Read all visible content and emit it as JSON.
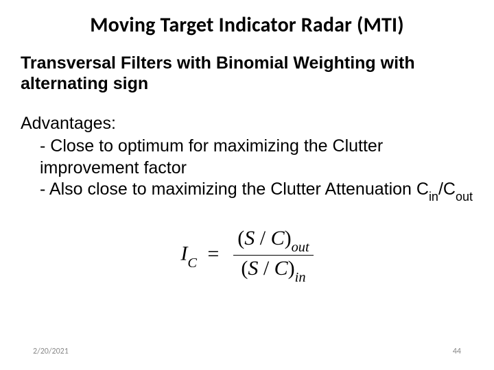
{
  "colors": {
    "background": "#ffffff",
    "text": "#000000",
    "footer_text": "#898989"
  },
  "typography": {
    "title_font": "Calibri",
    "title_size_pt": 30,
    "title_weight": "700",
    "subtitle_size_pt": 25,
    "subtitle_weight": "700",
    "body_font": "Arial",
    "body_size_pt": 25,
    "formula_font": "Times New Roman",
    "formula_size_pt": 30,
    "footer_size_pt": 12
  },
  "title": "Moving Target Indicator Radar (MTI)",
  "subtitle": "Transversal Filters with Binomial Weighting with alternating sign",
  "body": {
    "heading": "Advantages:",
    "bullet1": "- Close to optimum for maximizing the Clutter improvement factor",
    "bullet2_prefix": "- Also close to maximizing the Clutter Attenuation C",
    "bullet2_sub1": "in",
    "bullet2_slash": "/C",
    "bullet2_sub2": "out"
  },
  "formula": {
    "lhs_I": "I",
    "lhs_Csub": "C",
    "eq": "=",
    "num_open": "(",
    "num_S": "S",
    "num_slash": " / ",
    "num_C": "C",
    "num_close": ")",
    "num_sub": "out",
    "den_open": "(",
    "den_S": "S",
    "den_slash": " / ",
    "den_C": "C",
    "den_close": ")",
    "den_sub": "in"
  },
  "footer": {
    "date": "2/20/2021",
    "page": "44"
  }
}
